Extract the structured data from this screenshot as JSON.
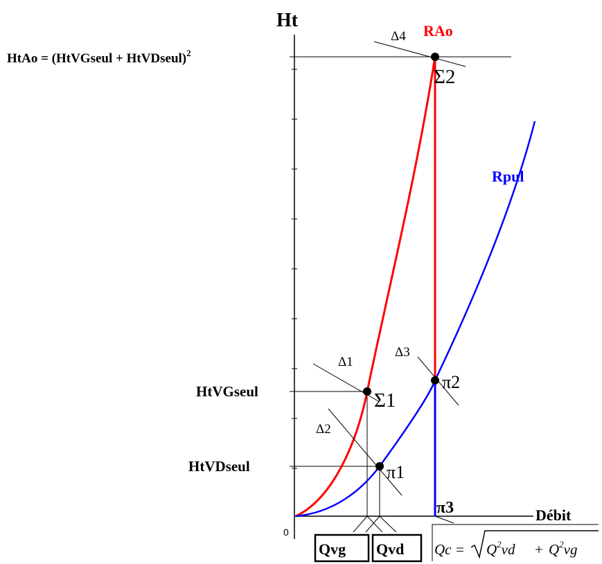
{
  "diagram": {
    "y_axis_label": "Ht",
    "x_axis_label": "Débit",
    "origin_label": "0",
    "level_labels": {
      "htao": "HtAo = (HtVGseul + HtVDseul)",
      "htao_exponent": "2",
      "htvg": "HtVGseul",
      "htvd": "HtVDseul"
    },
    "curve_labels": {
      "rao": "RAo",
      "rpul": "Rpul"
    },
    "point_labels": {
      "sigma1": "Σ1",
      "sigma2": "Σ2",
      "pi1": "π1",
      "pi2": "π2",
      "pi3": "π3"
    },
    "tangent_labels": {
      "delta1": "Δ1",
      "delta2": "Δ2",
      "delta3": "Δ3",
      "delta4": "Δ4"
    },
    "boxes": {
      "qvg": "Qvg",
      "qvd": "Qvd"
    },
    "formula": {
      "lhs": "Qc =",
      "term1_base": "Q",
      "term1_exp": "2",
      "term1_sub": "vd",
      "plus": "+",
      "term2_base": "Q",
      "term2_exp": "2",
      "term2_sub": "vg"
    },
    "colors": {
      "rao": "#ff0000",
      "rpul": "#0000ff",
      "axes": "#000000"
    }
  }
}
